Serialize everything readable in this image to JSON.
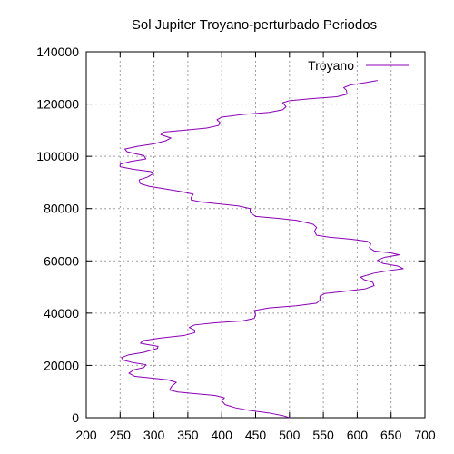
{
  "chart_data": {
    "type": "line",
    "title": "Sol Jupiter Troyano-perturbado Periodos",
    "xlabel": "",
    "ylabel": "",
    "xlim": [
      200,
      700
    ],
    "ylim": [
      0,
      140000
    ],
    "x_ticks": [
      200,
      250,
      300,
      350,
      400,
      450,
      500,
      550,
      600,
      650,
      700
    ],
    "y_ticks": [
      0,
      20000,
      40000,
      60000,
      80000,
      100000,
      120000,
      140000
    ],
    "grid": true,
    "legend_position": "top-right",
    "series": [
      {
        "name": "Troyano",
        "color": "#8b00b5",
        "points": [
          [
            500,
            0
          ],
          [
            490,
            800
          ],
          [
            470,
            1800
          ],
          [
            440,
            2800
          ],
          [
            420,
            3800
          ],
          [
            405,
            5000
          ],
          [
            400,
            6500
          ],
          [
            404,
            7600
          ],
          [
            390,
            8500
          ],
          [
            360,
            9200
          ],
          [
            335,
            9800
          ],
          [
            323,
            10600
          ],
          [
            326,
            12000
          ],
          [
            333,
            13500
          ],
          [
            320,
            14500
          ],
          [
            295,
            15200
          ],
          [
            272,
            15800
          ],
          [
            263,
            17000
          ],
          [
            270,
            18300
          ],
          [
            285,
            19200
          ],
          [
            288,
            20300
          ],
          [
            270,
            21000
          ],
          [
            255,
            22000
          ],
          [
            252,
            23000
          ],
          [
            262,
            24000
          ],
          [
            285,
            25000
          ],
          [
            305,
            26500
          ],
          [
            306,
            27300
          ],
          [
            290,
            28000
          ],
          [
            280,
            28500
          ],
          [
            284,
            29500
          ],
          [
            310,
            30500
          ],
          [
            345,
            31500
          ],
          [
            360,
            32500
          ],
          [
            360,
            33500
          ],
          [
            352,
            34500
          ],
          [
            360,
            35500
          ],
          [
            390,
            36300
          ],
          [
            430,
            37000
          ],
          [
            448,
            38000
          ],
          [
            450,
            39500
          ],
          [
            448,
            41000
          ],
          [
            470,
            42000
          ],
          [
            510,
            42800
          ],
          [
            540,
            43800
          ],
          [
            545,
            45000
          ],
          [
            545,
            46500
          ],
          [
            552,
            47500
          ],
          [
            580,
            48300
          ],
          [
            612,
            49300
          ],
          [
            625,
            50500
          ],
          [
            623,
            51800
          ],
          [
            610,
            52800
          ],
          [
            605,
            53800
          ],
          [
            625,
            55300
          ],
          [
            648,
            56300
          ],
          [
            668,
            57000
          ],
          [
            660,
            58000
          ],
          [
            638,
            59000
          ],
          [
            630,
            60300
          ],
          [
            640,
            61300
          ],
          [
            662,
            62300
          ],
          [
            650,
            63000
          ],
          [
            625,
            63800
          ],
          [
            618,
            65000
          ],
          [
            620,
            66500
          ],
          [
            615,
            67500
          ],
          [
            590,
            68300
          ],
          [
            560,
            69000
          ],
          [
            540,
            69800
          ],
          [
            537,
            71300
          ],
          [
            540,
            72800
          ],
          [
            535,
            74000
          ],
          [
            510,
            75500
          ],
          [
            485,
            76200
          ],
          [
            450,
            77000
          ],
          [
            442,
            78500
          ],
          [
            442,
            80000
          ],
          [
            425,
            81000
          ],
          [
            395,
            81800
          ],
          [
            370,
            82500
          ],
          [
            355,
            83300
          ],
          [
            355,
            84300
          ],
          [
            358,
            85500
          ],
          [
            340,
            86500
          ],
          [
            315,
            87600
          ],
          [
            293,
            88500
          ],
          [
            280,
            89500
          ],
          [
            278,
            91000
          ],
          [
            290,
            92000
          ],
          [
            300,
            93500
          ],
          [
            295,
            94200
          ],
          [
            270,
            95000
          ],
          [
            250,
            96000
          ],
          [
            250,
            97000
          ],
          [
            265,
            98000
          ],
          [
            288,
            99000
          ],
          [
            285,
            100300
          ],
          [
            272,
            101000
          ],
          [
            260,
            101800
          ],
          [
            257,
            102800
          ],
          [
            275,
            103800
          ],
          [
            300,
            104800
          ],
          [
            318,
            106000
          ],
          [
            325,
            107000
          ],
          [
            310,
            108300
          ],
          [
            315,
            109300
          ],
          [
            345,
            110000
          ],
          [
            378,
            110800
          ],
          [
            395,
            111800
          ],
          [
            398,
            112800
          ],
          [
            393,
            114000
          ],
          [
            400,
            115000
          ],
          [
            430,
            116000
          ],
          [
            470,
            116800
          ],
          [
            490,
            117800
          ],
          [
            495,
            119000
          ],
          [
            490,
            120500
          ],
          [
            500,
            121300
          ],
          [
            530,
            122000
          ],
          [
            570,
            122800
          ],
          [
            585,
            123800
          ],
          [
            584,
            125300
          ],
          [
            580,
            126300
          ],
          [
            590,
            127300
          ],
          [
            612,
            128200
          ],
          [
            630,
            129000
          ]
        ]
      }
    ]
  }
}
